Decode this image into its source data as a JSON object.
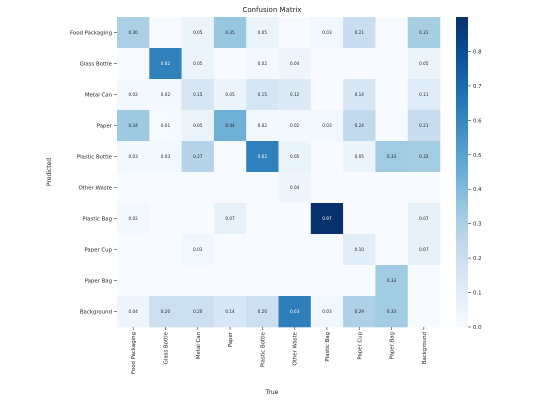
{
  "chart_data": {
    "type": "heatmap",
    "title": "Confusion Matrix",
    "xlabel": "True",
    "ylabel": "Predicted",
    "columns": [
      "Food Packaging",
      "Glass Bottle",
      "Metal Can",
      "Paper",
      "Plastic Bottle",
      "Other Waste",
      "Plastic Bag",
      "Paper Cup",
      "Paper Bag",
      "Background"
    ],
    "rows": [
      "Food Packaging",
      "Glass Bottle",
      "Metal Can",
      "Paper",
      "Plastic Bottle",
      "Other Waste",
      "Plastic Bag",
      "Paper Cup",
      "Paper Bag",
      "Background"
    ],
    "values": [
      [
        0.3,
        null,
        0.05,
        0.35,
        0.05,
        null,
        0.03,
        0.21,
        null,
        0.31
      ],
      [
        null,
        0.62,
        0.05,
        null,
        0.02,
        0.04,
        null,
        null,
        null,
        0.05
      ],
      [
        0.02,
        0.02,
        0.15,
        0.05,
        0.15,
        0.12,
        null,
        0.14,
        null,
        0.11
      ],
      [
        0.34,
        0.01,
        0.05,
        0.44,
        0.02,
        0.02,
        0.03,
        0.24,
        null,
        0.21
      ],
      [
        0.03,
        0.03,
        0.27,
        null,
        0.62,
        0.05,
        null,
        0.05,
        0.33,
        0.32
      ],
      [
        null,
        null,
        null,
        null,
        null,
        0.04,
        null,
        null,
        null,
        null
      ],
      [
        0.02,
        null,
        null,
        0.07,
        null,
        null,
        0.97,
        null,
        null,
        0.07
      ],
      [
        null,
        null,
        0.03,
        null,
        null,
        null,
        null,
        0.1,
        null,
        0.07
      ],
      [
        null,
        null,
        null,
        null,
        null,
        null,
        null,
        null,
        0.33,
        null
      ],
      [
        0.04,
        0.2,
        0.2,
        0.14,
        0.2,
        0.63,
        0.03,
        0.29,
        0.33,
        null
      ]
    ],
    "colorbar": {
      "min": 0.0,
      "max": 0.9,
      "ticks": [
        "0.0",
        "0.1",
        "0.2",
        "0.3",
        "0.4",
        "0.5",
        "0.6",
        "0.7",
        "0.8"
      ]
    },
    "colormap": [
      "#f7fbff",
      "#deebf7",
      "#c6dbef",
      "#9ecae1",
      "#6baed6",
      "#4292c6",
      "#2171b5",
      "#08519c",
      "#08306b"
    ]
  }
}
